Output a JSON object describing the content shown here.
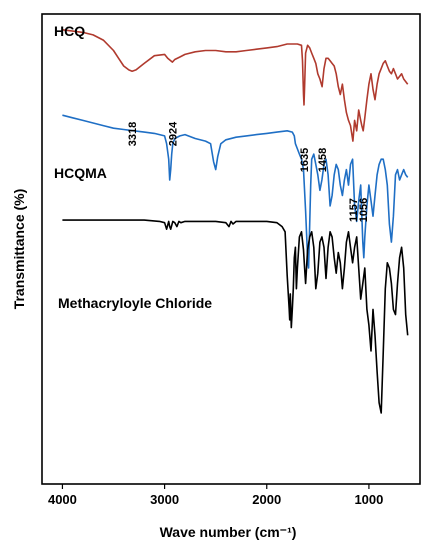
{
  "chart_data": {
    "type": "line",
    "title": "",
    "xlabel": "Wave number (cm⁻¹)",
    "ylabel": "Transmittance (%)",
    "xlim": [
      4200,
      500
    ],
    "x_ticks": [
      {
        "value": 4000,
        "label": "4000"
      },
      {
        "value": 3000,
        "label": "3000"
      },
      {
        "value": 2000,
        "label": "2000"
      },
      {
        "value": 1000,
        "label": "1000"
      }
    ],
    "grid": false,
    "series": [
      {
        "name": "HCQ",
        "color": "#b03a2e",
        "offset": 0.73,
        "x": [
          4000,
          3900,
          3800,
          3700,
          3600,
          3500,
          3450,
          3400,
          3350,
          3318,
          3280,
          3200,
          3100,
          3000,
          2970,
          2924,
          2900,
          2850,
          2800,
          2700,
          2600,
          2500,
          2400,
          2300,
          2200,
          2100,
          2000,
          1900,
          1800,
          1700,
          1660,
          1650,
          1640,
          1635,
          1630,
          1620,
          1600,
          1580,
          1560,
          1540,
          1520,
          1500,
          1480,
          1458,
          1440,
          1420,
          1400,
          1380,
          1360,
          1340,
          1320,
          1300,
          1280,
          1260,
          1240,
          1220,
          1200,
          1180,
          1157,
          1140,
          1120,
          1100,
          1080,
          1070,
          1056,
          1040,
          1020,
          1000,
          980,
          960,
          940,
          920,
          900,
          880,
          860,
          840,
          820,
          800,
          780,
          760,
          740,
          720,
          700,
          680,
          660,
          640,
          620
        ],
        "y": [
          0.97,
          0.965,
          0.96,
          0.95,
          0.93,
          0.89,
          0.86,
          0.83,
          0.815,
          0.81,
          0.815,
          0.84,
          0.87,
          0.875,
          0.86,
          0.845,
          0.855,
          0.865,
          0.875,
          0.885,
          0.89,
          0.89,
          0.885,
          0.885,
          0.89,
          0.895,
          0.9,
          0.905,
          0.915,
          0.915,
          0.91,
          0.85,
          0.72,
          0.68,
          0.75,
          0.88,
          0.91,
          0.9,
          0.88,
          0.86,
          0.84,
          0.8,
          0.78,
          0.75,
          0.82,
          0.86,
          0.86,
          0.85,
          0.84,
          0.83,
          0.8,
          0.75,
          0.72,
          0.76,
          0.7,
          0.65,
          0.62,
          0.6,
          0.54,
          0.62,
          0.58,
          0.66,
          0.62,
          0.6,
          0.58,
          0.63,
          0.7,
          0.76,
          0.8,
          0.74,
          0.7,
          0.76,
          0.8,
          0.82,
          0.84,
          0.85,
          0.83,
          0.81,
          0.8,
          0.82,
          0.8,
          0.78,
          0.79,
          0.8,
          0.78,
          0.77,
          0.76
        ]
      },
      {
        "name": "HCQMA",
        "color": "#1f6fc5",
        "offset": 0.4,
        "x": [
          4000,
          3900,
          3800,
          3700,
          3600,
          3500,
          3400,
          3300,
          3200,
          3100,
          3050,
          3000,
          2980,
          2960,
          2950,
          2940,
          2930,
          2920,
          2900,
          2850,
          2800,
          2700,
          2600,
          2550,
          2520,
          2500,
          2480,
          2450,
          2400,
          2300,
          2200,
          2100,
          2000,
          1900,
          1800,
          1750,
          1730,
          1720,
          1700,
          1680,
          1660,
          1640,
          1620,
          1600,
          1590,
          1580,
          1570,
          1560,
          1540,
          1520,
          1500,
          1480,
          1460,
          1440,
          1420,
          1400,
          1380,
          1360,
          1340,
          1320,
          1300,
          1280,
          1260,
          1240,
          1220,
          1200,
          1180,
          1160,
          1140,
          1120,
          1100,
          1080,
          1060,
          1050,
          1040,
          1020,
          1000,
          980,
          960,
          940,
          920,
          900,
          880,
          860,
          840,
          820,
          800,
          780,
          760,
          740,
          720,
          700,
          680,
          660,
          640,
          620
        ],
        "y": [
          0.97,
          0.96,
          0.95,
          0.94,
          0.93,
          0.92,
          0.915,
          0.91,
          0.905,
          0.9,
          0.895,
          0.89,
          0.86,
          0.8,
          0.72,
          0.76,
          0.82,
          0.86,
          0.88,
          0.89,
          0.895,
          0.88,
          0.87,
          0.86,
          0.79,
          0.76,
          0.81,
          0.86,
          0.875,
          0.885,
          0.89,
          0.895,
          0.9,
          0.905,
          0.91,
          0.905,
          0.89,
          0.86,
          0.84,
          0.82,
          0.8,
          0.76,
          0.6,
          0.42,
          0.38,
          0.55,
          0.7,
          0.8,
          0.82,
          0.78,
          0.74,
          0.68,
          0.72,
          0.78,
          0.8,
          0.74,
          0.62,
          0.66,
          0.74,
          0.78,
          0.76,
          0.7,
          0.66,
          0.72,
          0.76,
          0.7,
          0.78,
          0.8,
          0.62,
          0.56,
          0.64,
          0.7,
          0.48,
          0.42,
          0.5,
          0.62,
          0.7,
          0.64,
          0.58,
          0.66,
          0.74,
          0.78,
          0.8,
          0.8,
          0.76,
          0.7,
          0.55,
          0.48,
          0.58,
          0.74,
          0.76,
          0.72,
          0.74,
          0.76,
          0.74,
          0.73
        ]
      },
      {
        "name": "Methacryloyle Chloride",
        "color": "#000000",
        "offset": 0.0,
        "x": [
          4000,
          3800,
          3600,
          3400,
          3200,
          3050,
          3000,
          2980,
          2960,
          2950,
          2940,
          2920,
          2900,
          2880,
          2860,
          2840,
          2800,
          2700,
          2600,
          2500,
          2400,
          2370,
          2350,
          2330,
          2300,
          2200,
          2100,
          2000,
          1900,
          1850,
          1820,
          1800,
          1780,
          1775,
          1770,
          1760,
          1750,
          1740,
          1730,
          1720,
          1710,
          1700,
          1680,
          1660,
          1640,
          1630,
          1620,
          1600,
          1580,
          1560,
          1540,
          1520,
          1500,
          1480,
          1460,
          1440,
          1420,
          1400,
          1380,
          1360,
          1340,
          1320,
          1300,
          1280,
          1260,
          1240,
          1220,
          1200,
          1180,
          1160,
          1140,
          1120,
          1100,
          1080,
          1060,
          1040,
          1020,
          1000,
          980,
          960,
          940,
          920,
          900,
          880,
          860,
          840,
          820,
          800,
          780,
          760,
          740,
          720,
          700,
          680,
          660,
          640,
          620
        ],
        "y": [
          0.965,
          0.965,
          0.965,
          0.965,
          0.965,
          0.96,
          0.955,
          0.93,
          0.96,
          0.94,
          0.93,
          0.96,
          0.955,
          0.94,
          0.96,
          0.955,
          0.96,
          0.96,
          0.96,
          0.96,
          0.955,
          0.94,
          0.96,
          0.95,
          0.96,
          0.96,
          0.96,
          0.96,
          0.955,
          0.94,
          0.92,
          0.75,
          0.62,
          0.58,
          0.68,
          0.55,
          0.62,
          0.7,
          0.82,
          0.86,
          0.7,
          0.78,
          0.9,
          0.92,
          0.85,
          0.78,
          0.72,
          0.85,
          0.9,
          0.92,
          0.86,
          0.7,
          0.76,
          0.88,
          0.9,
          0.86,
          0.74,
          0.86,
          0.92,
          0.9,
          0.82,
          0.76,
          0.84,
          0.8,
          0.7,
          0.78,
          0.88,
          0.92,
          0.86,
          0.8,
          0.86,
          0.9,
          0.78,
          0.66,
          0.72,
          0.78,
          0.62,
          0.56,
          0.46,
          0.62,
          0.52,
          0.38,
          0.26,
          0.22,
          0.45,
          0.7,
          0.8,
          0.78,
          0.72,
          0.62,
          0.6,
          0.72,
          0.82,
          0.86,
          0.78,
          0.6,
          0.52
        ]
      }
    ],
    "annotations": [
      {
        "text": "3318",
        "x": 3318,
        "series": "HCQ"
      },
      {
        "text": "2924",
        "x": 2924,
        "series": "HCQ"
      },
      {
        "text": "1635",
        "x": 1635,
        "series": "HCQ"
      },
      {
        "text": "1458",
        "x": 1458,
        "series": "HCQ"
      },
      {
        "text": "1157",
        "x": 1157,
        "series": "HCQ"
      },
      {
        "text": "1056",
        "x": 1056,
        "series": "HCQ"
      }
    ]
  }
}
